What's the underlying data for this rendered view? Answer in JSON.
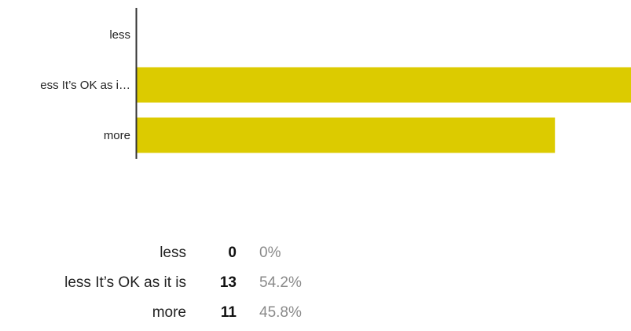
{
  "chart_data": {
    "type": "bar",
    "orientation": "horizontal",
    "categories": [
      "less",
      "less It’s OK as it is",
      "more"
    ],
    "category_labels_displayed": [
      "less",
      "ess It’s OK as i…",
      "more"
    ],
    "values": [
      0,
      13,
      11
    ],
    "percentages": [
      "0%",
      "54.2%",
      "45.8%"
    ],
    "xlim": [
      0,
      13
    ],
    "grid": false,
    "legend": "none",
    "bar_color": "#dccb00",
    "axis_color": "#333333"
  },
  "summary": {
    "rows": [
      {
        "category": "less",
        "count": "0",
        "percent": "0%"
      },
      {
        "category": "less It’s OK as it is",
        "count": "13",
        "percent": "54.2%"
      },
      {
        "category": "more",
        "count": "11",
        "percent": "45.8%"
      }
    ]
  }
}
